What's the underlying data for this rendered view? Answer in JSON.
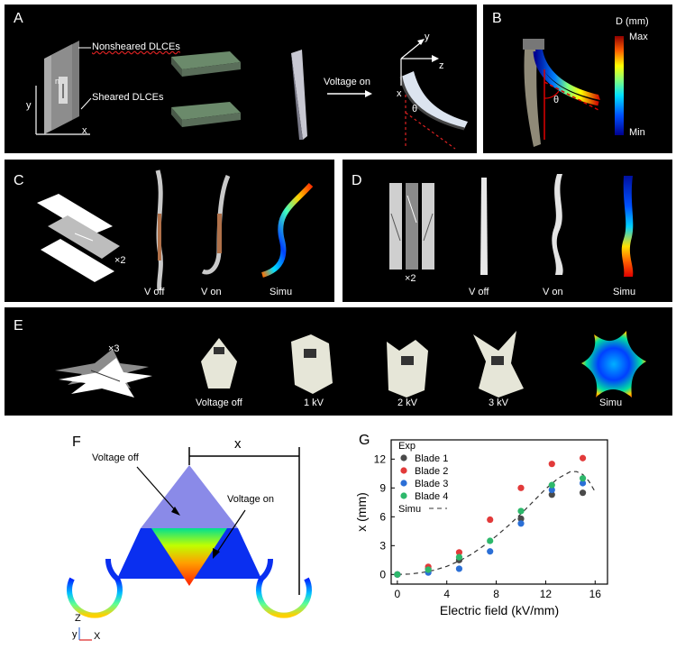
{
  "panels": {
    "A": {
      "label": "A",
      "nonsheared": "Nonsheared DLCEs",
      "sheared": "Sheared DLCEs",
      "n": "n",
      "axis_y": "y",
      "axis_x": "x",
      "voltage": "Voltage on",
      "axis3_y": "y",
      "axis3_z": "z",
      "axis3_x": "x",
      "theta": "θ"
    },
    "B": {
      "label": "B",
      "colorbar_title": "D (mm)",
      "colorbar_max": "Max",
      "colorbar_min": "Min",
      "theta": "θ"
    },
    "C": {
      "label": "C",
      "mult": "×2",
      "voff": "V off",
      "von": "V on",
      "simu": "Simu"
    },
    "D": {
      "label": "D",
      "mult": "×2",
      "voff": "V off",
      "von": "V on",
      "simu": "Simu"
    },
    "E": {
      "label": "E",
      "mult": "×3",
      "c1": "Voltage off",
      "c2": "1 kV",
      "c3": "2 kV",
      "c4": "3 kV",
      "c5": "Simu"
    },
    "F": {
      "label": "F",
      "x": "x",
      "voff": "Voltage off",
      "von": "Voltage on",
      "axis_z": "Z",
      "axis_y": "y",
      "axis_x": "X"
    },
    "G": {
      "label": "G"
    }
  },
  "chart_data": {
    "type": "scatter",
    "xlabel": "Electric field (kV/mm)",
    "ylabel": "x (mm)",
    "xlim": [
      -0.5,
      17
    ],
    "ylim": [
      -1,
      14
    ],
    "xticks": [
      "0",
      "4",
      "8",
      "12",
      "16"
    ],
    "yticks": [
      "0",
      "3",
      "6",
      "9",
      "12"
    ],
    "legend_title": "Exp",
    "legend_placement": "top-left",
    "series": [
      {
        "name": "Blade 1",
        "color": "#4a4a4a",
        "points": [
          [
            0,
            0
          ],
          [
            2.5,
            0.6
          ],
          [
            5,
            1.5
          ],
          [
            10,
            5.8
          ],
          [
            12.5,
            8.3
          ],
          [
            15,
            8.5
          ]
        ]
      },
      {
        "name": "Blade 2",
        "color": "#e23a3a",
        "points": [
          [
            0,
            0
          ],
          [
            2.5,
            0.8
          ],
          [
            5,
            2.3
          ],
          [
            7.5,
            5.7
          ],
          [
            10,
            9
          ],
          [
            12.5,
            11.5
          ],
          [
            15,
            12.1
          ]
        ]
      },
      {
        "name": "Blade 3",
        "color": "#2b6fd6",
        "points": [
          [
            0,
            0
          ],
          [
            2.5,
            0.2
          ],
          [
            5,
            0.6
          ],
          [
            7.5,
            2.4
          ],
          [
            10,
            5.3
          ],
          [
            12.5,
            8.8
          ],
          [
            15,
            9.5
          ]
        ]
      },
      {
        "name": "Blade 4",
        "color": "#2db86b",
        "points": [
          [
            0,
            0
          ],
          [
            2.5,
            0.5
          ],
          [
            5,
            1.8
          ],
          [
            7.5,
            3.5
          ],
          [
            10,
            6.6
          ],
          [
            12.5,
            9.3
          ],
          [
            15,
            10
          ]
        ]
      }
    ],
    "simu": {
      "name": "Simu",
      "style": "dashed",
      "color": "#333333",
      "points": [
        [
          0,
          0
        ],
        [
          1,
          0.05
        ],
        [
          2,
          0.2
        ],
        [
          3,
          0.45
        ],
        [
          4,
          0.85
        ],
        [
          5,
          1.4
        ],
        [
          6,
          2.1
        ],
        [
          7,
          3
        ],
        [
          8,
          4
        ],
        [
          9,
          5.1
        ],
        [
          10,
          6.3
        ],
        [
          11,
          7.6
        ],
        [
          12,
          8.9
        ],
        [
          13,
          10
        ],
        [
          14,
          10.7
        ],
        [
          14.5,
          10.7
        ],
        [
          15,
          10.4
        ],
        [
          15.5,
          9.7
        ],
        [
          16,
          8.6
        ]
      ]
    }
  }
}
